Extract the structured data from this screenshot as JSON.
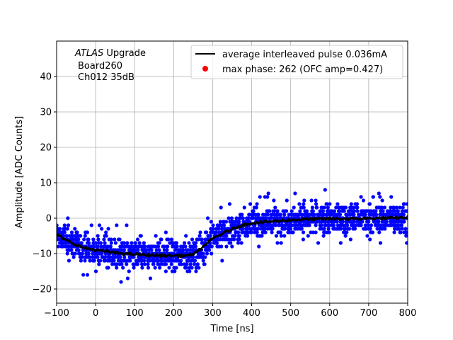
{
  "chart_data": {
    "type": "scatter",
    "xlabel": "Time [ns]",
    "ylabel": "Amplitude [ADC Counts]",
    "xlim": [
      -100,
      800
    ],
    "ylim": [
      -24,
      50
    ],
    "xticks": [
      -100,
      0,
      100,
      200,
      300,
      400,
      500,
      600,
      700,
      800
    ],
    "yticks": [
      -20,
      -10,
      0,
      10,
      20,
      30,
      40
    ],
    "grid": true,
    "legend_position": "top-right",
    "annotation": {
      "line1_italic": "ATLAS",
      "line1_rest": " Upgrade",
      "line2": "Board260",
      "line3": "Ch012 35dB"
    },
    "series": [
      {
        "name": "average interleaved pulse 0.036mA",
        "type": "line",
        "color": "#000000",
        "x": [
          -100,
          -80,
          -60,
          -40,
          -20,
          0,
          20,
          50,
          100,
          150,
          200,
          240,
          260,
          280,
          300,
          320,
          340,
          360,
          380,
          400,
          450,
          500,
          550,
          600,
          650,
          700,
          750,
          800
        ],
        "y": [
          -4.5,
          -6.0,
          -7.0,
          -8.0,
          -8.6,
          -9.0,
          -9.3,
          -9.8,
          -10.2,
          -10.5,
          -10.6,
          -10.5,
          -9.6,
          -7.6,
          -5.8,
          -4.6,
          -3.6,
          -2.6,
          -1.9,
          -1.4,
          -0.9,
          -0.5,
          -0.3,
          -0.2,
          -0.2,
          -0.1,
          0.0,
          0.2
        ]
      },
      {
        "name": "max phase: 262 (OFC amp=0.427)",
        "type": "point",
        "color": "#ff0000",
        "x": [],
        "y": []
      }
    ],
    "sample_points": {
      "color": "#0000ff",
      "spread_adc": 4.5,
      "outlier_spread_adc": 8.0
    }
  }
}
